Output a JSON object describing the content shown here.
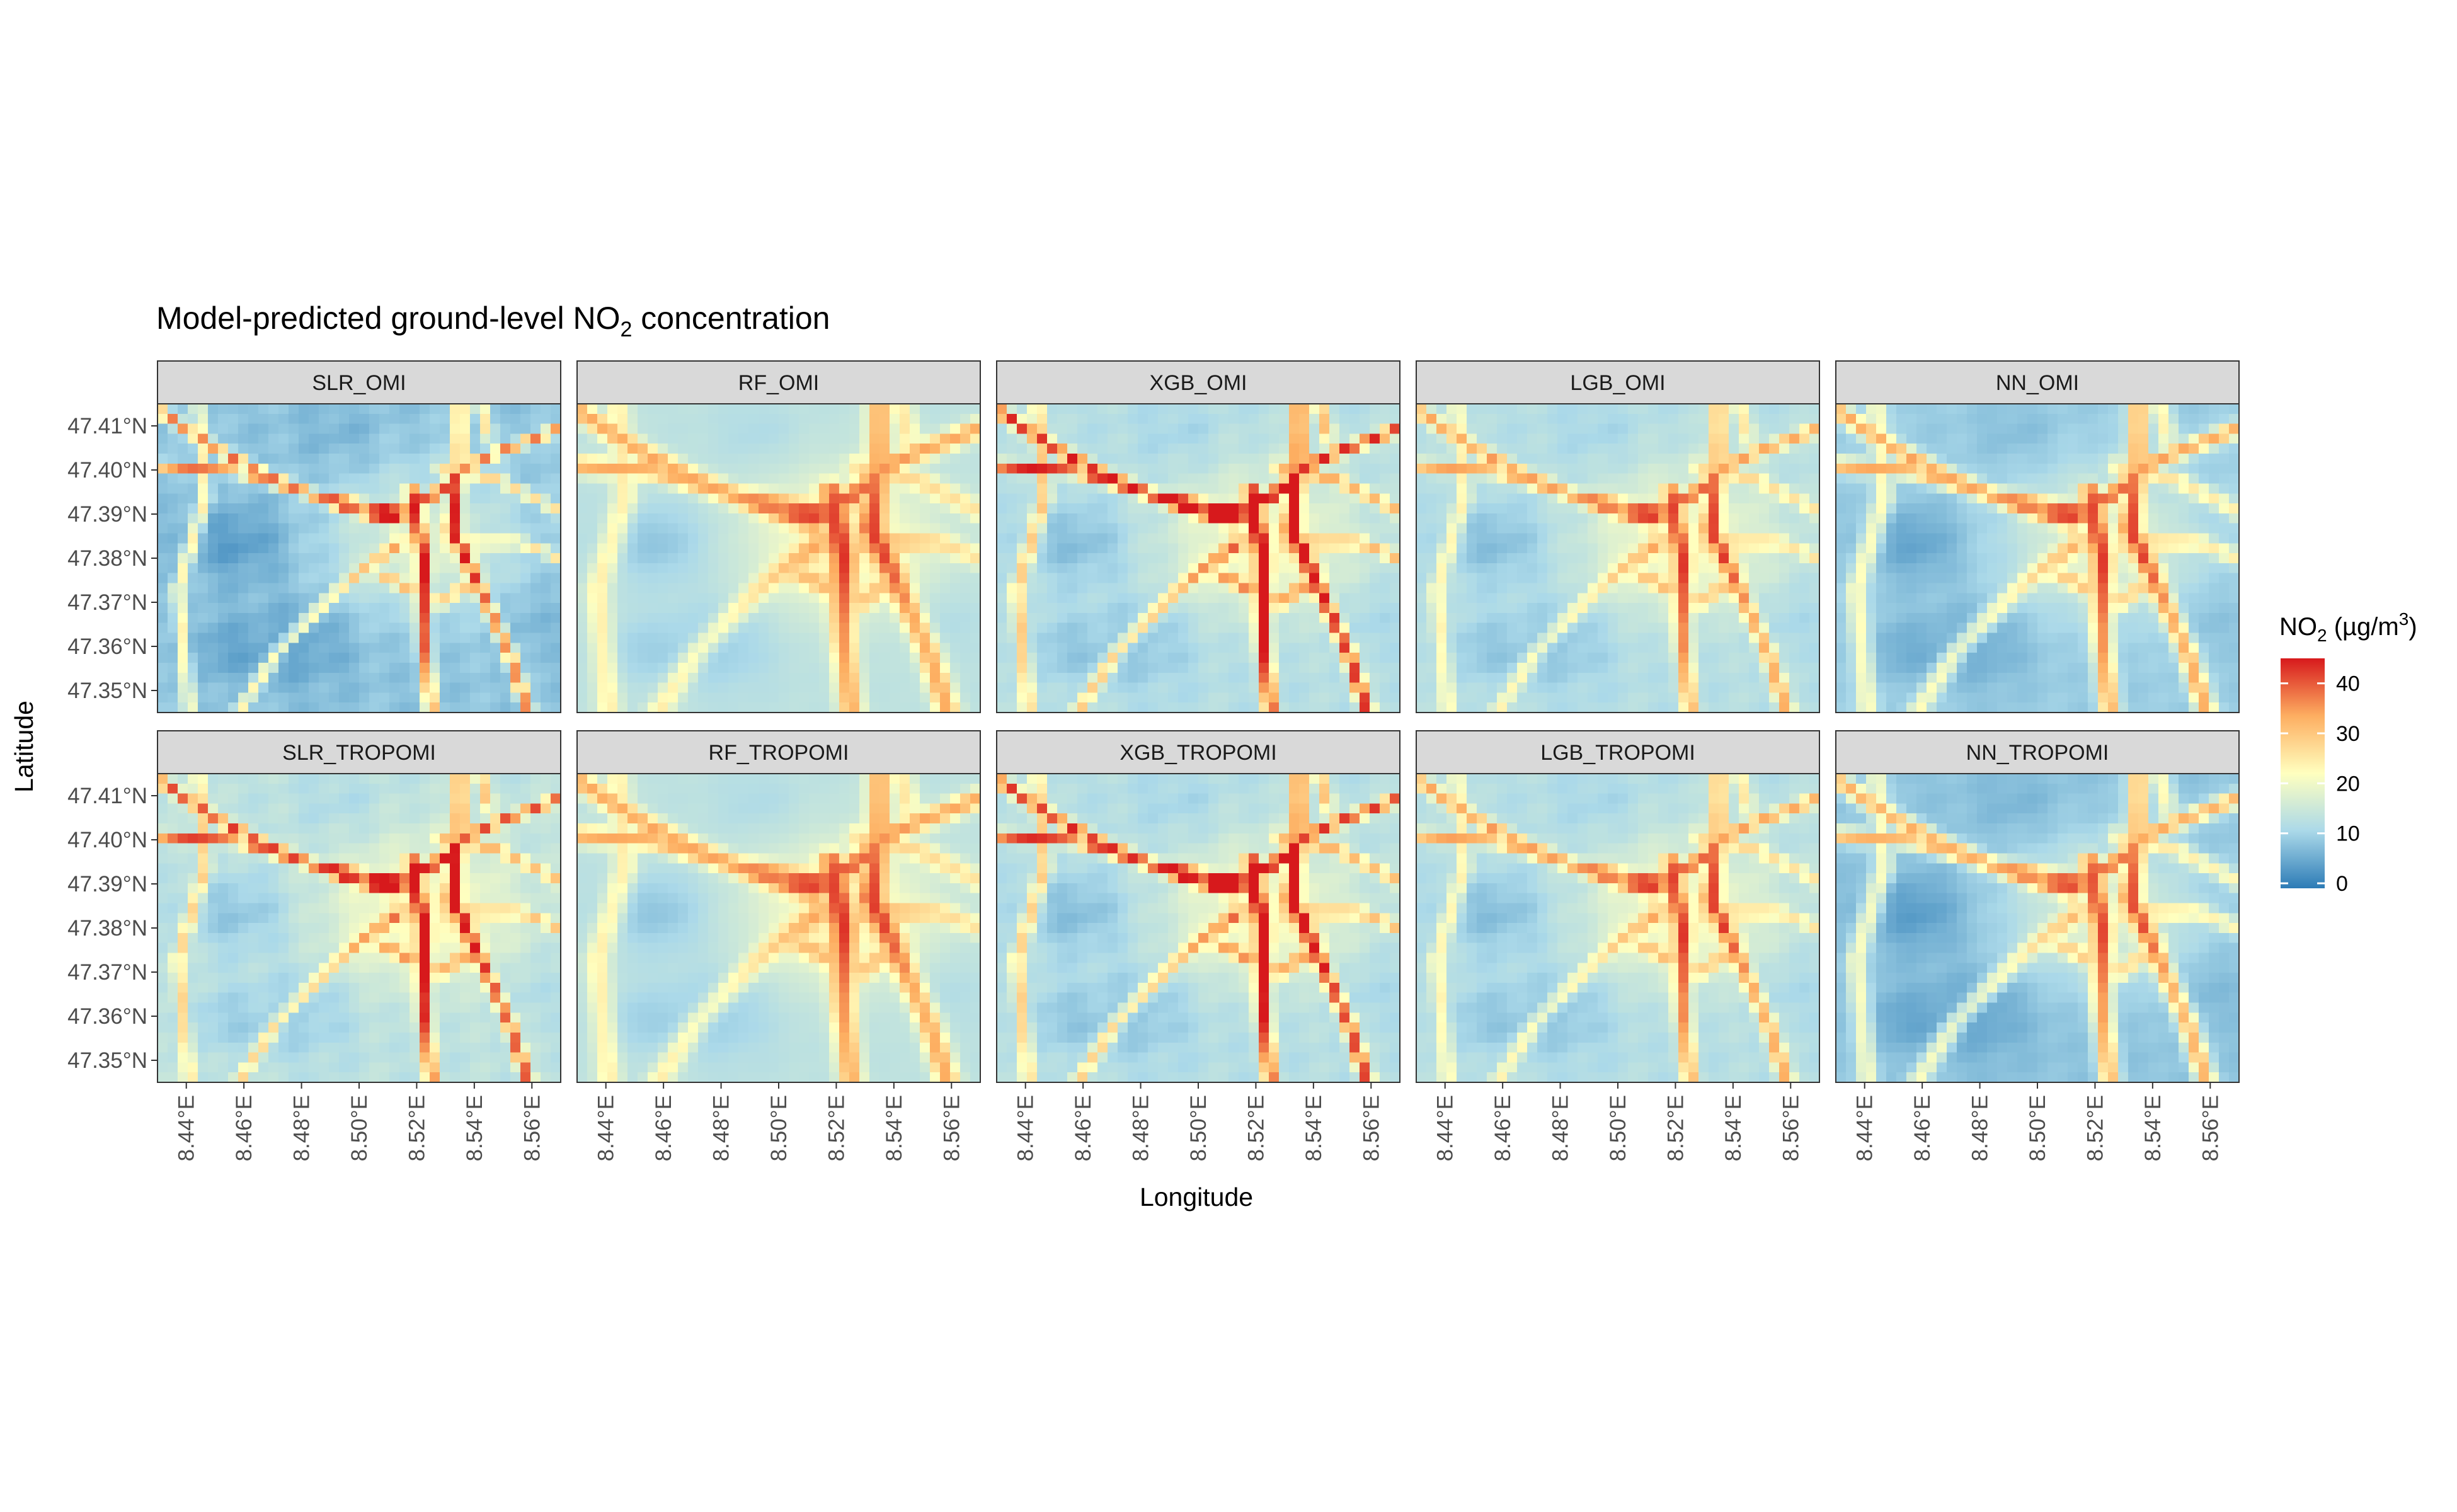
{
  "chart_data": {
    "type": "heatmap",
    "title": {
      "main": "Model-predicted ground-level NO",
      "subscript": "2",
      "suffix": " concentration"
    },
    "xlabel": "Longitude",
    "ylabel": "Latitude",
    "x_range": [
      8.43,
      8.57
    ],
    "y_range": [
      47.345,
      47.415
    ],
    "x_ticks": [
      8.44,
      8.46,
      8.48,
      8.5,
      8.52,
      8.54,
      8.56
    ],
    "x_tick_labels": [
      "8.44°E",
      "8.46°E",
      "8.48°E",
      "8.50°E",
      "8.52°E",
      "8.54°E",
      "8.56°E"
    ],
    "y_ticks": [
      47.41,
      47.4,
      47.39,
      47.38,
      47.37,
      47.36,
      47.35
    ],
    "y_tick_labels": [
      "47.41°N",
      "47.40°N",
      "47.39°N",
      "47.38°N",
      "47.37°N",
      "47.36°N",
      "47.35°N"
    ],
    "facet_rows": 2,
    "facet_cols": 5,
    "panels": [
      {
        "name": "SLR_OMI",
        "road_intensity": 1.15,
        "background": 8,
        "smooth": 0.2
      },
      {
        "name": "RF_OMI",
        "road_intensity": 0.8,
        "background": 13,
        "smooth": 1.0
      },
      {
        "name": "XGB_OMI",
        "road_intensity": 1.25,
        "background": 12,
        "smooth": 0.3
      },
      {
        "name": "LGB_OMI",
        "road_intensity": 0.85,
        "background": 12,
        "smooth": 0.4
      },
      {
        "name": "NN_OMI",
        "road_intensity": 0.95,
        "background": 9,
        "smooth": 0.7
      },
      {
        "name": "SLR_TROPOMI",
        "road_intensity": 1.1,
        "background": 13,
        "smooth": 0.2
      },
      {
        "name": "RF_TROPOMI",
        "road_intensity": 0.8,
        "background": 13,
        "smooth": 1.0
      },
      {
        "name": "XGB_TROPOMI",
        "road_intensity": 1.2,
        "background": 12,
        "smooth": 0.3
      },
      {
        "name": "LGB_TROPOMI",
        "road_intensity": 0.85,
        "background": 12,
        "smooth": 0.4
      },
      {
        "name": "NN_TROPOMI",
        "road_intensity": 0.95,
        "background": 8,
        "smooth": 0.7
      }
    ],
    "legend": {
      "title_main": "NO",
      "title_sub": "2",
      "title_rest": " (µg/m",
      "title_sup": "3",
      "title_end": ")",
      "ticks": [
        0,
        10,
        20,
        30,
        40
      ],
      "tick_labels": [
        "0",
        "10",
        "20",
        "30",
        "40"
      ],
      "range": [
        -1,
        45
      ],
      "position": "right",
      "colors": [
        "#2c7bb6",
        "#abd9e9",
        "#ffffbf",
        "#fdae61",
        "#d7191c"
      ]
    }
  }
}
